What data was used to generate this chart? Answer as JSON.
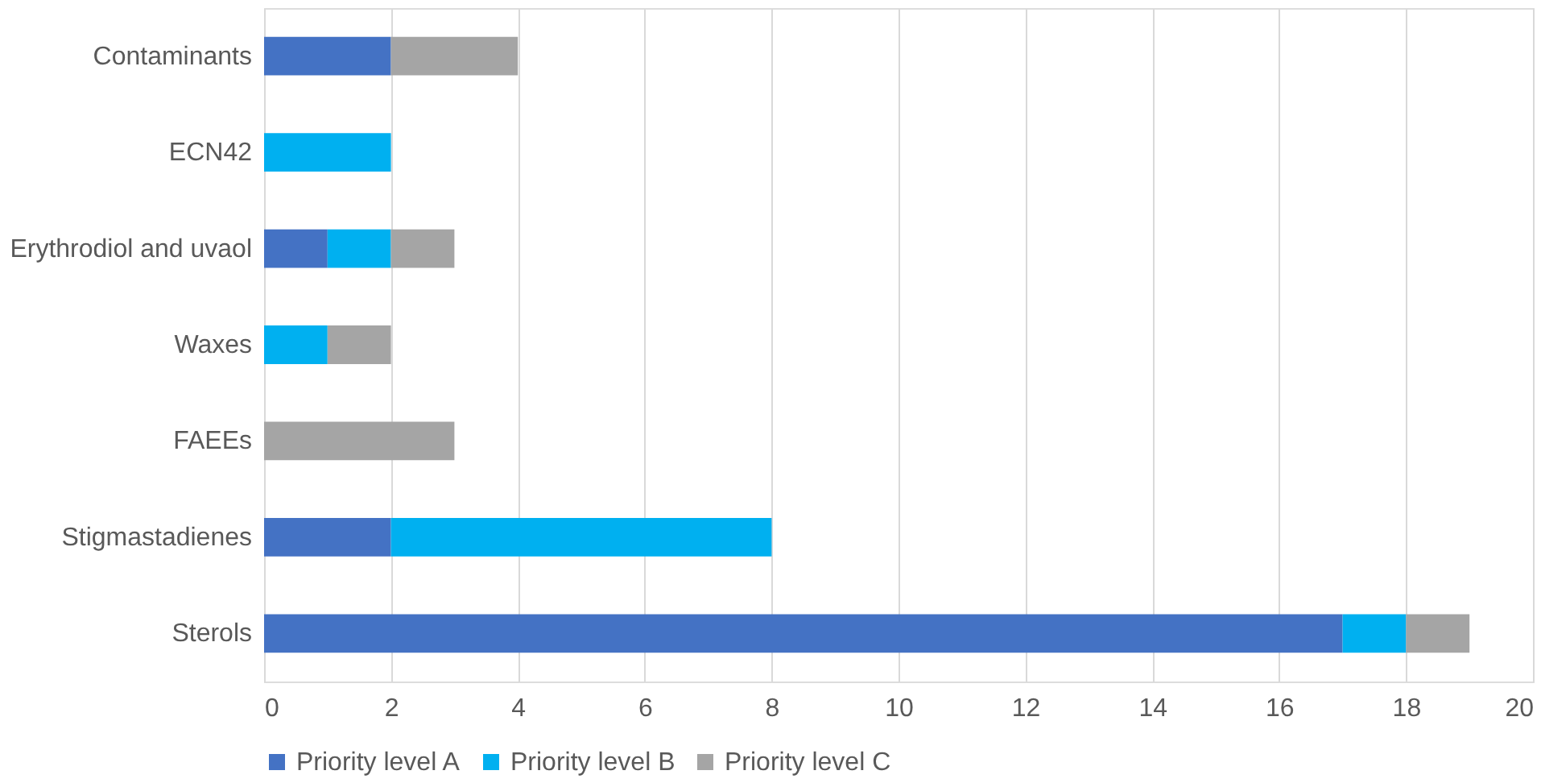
{
  "chart_data": {
    "type": "bar",
    "orientation": "horizontal",
    "stacked": true,
    "categories": [
      "Contaminants",
      "ECN42",
      "Erythrodiol and uvaol",
      "Waxes",
      "FAEEs",
      "Stigmastadienes",
      "Sterols"
    ],
    "series": [
      {
        "name": "Priority level A",
        "color": "#4472c4",
        "values": [
          2,
          0,
          1,
          0,
          0,
          2,
          17
        ]
      },
      {
        "name": "Priority level B",
        "color": "#00b0f0",
        "values": [
          0,
          2,
          1,
          1,
          0,
          6,
          1
        ]
      },
      {
        "name": "Priority level C",
        "color": "#a5a5a5",
        "values": [
          2,
          0,
          1,
          1,
          3,
          0,
          1
        ]
      }
    ],
    "xlim": [
      0,
      20
    ],
    "xticks": [
      0,
      2,
      4,
      6,
      8,
      10,
      12,
      14,
      16,
      18,
      20
    ],
    "grid": "x",
    "legend": "bottom"
  }
}
